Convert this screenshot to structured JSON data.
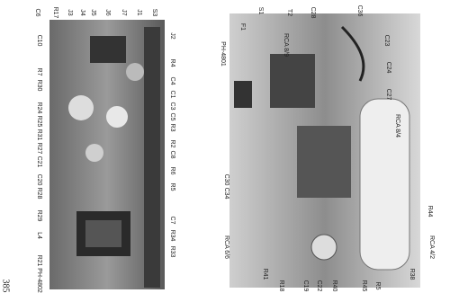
{
  "page_number": "385",
  "figures": [
    {
      "caption": "PH-4802",
      "labels": [
        "C6",
        "R17",
        "J3",
        "J4",
        "J5",
        "J6",
        "J7",
        "J1",
        "S3",
        "J2",
        "R4",
        "C4",
        "C1",
        "C3",
        "C5",
        "R3",
        "R2",
        "C8",
        "R6",
        "R5",
        "C7",
        "R34",
        "R33",
        "C10",
        "R7",
        "R30",
        "R24",
        "R25",
        "R31",
        "R27",
        "C21",
        "C20",
        "R28",
        "R29",
        "L4",
        "R21"
      ]
    },
    {
      "caption": "PH-4801",
      "labels": [
        "F1",
        "S1",
        "T2",
        "C28",
        "C36",
        "C23",
        "C24",
        "C27",
        "RCA 8/4",
        "R44",
        "RCA 4/2",
        "R38",
        "R5",
        "R45",
        "R40",
        "C22",
        "C19",
        "R18",
        "R41",
        "C30",
        "C34",
        "RCA 8/9",
        "RCA 6/6"
      ]
    }
  ]
}
